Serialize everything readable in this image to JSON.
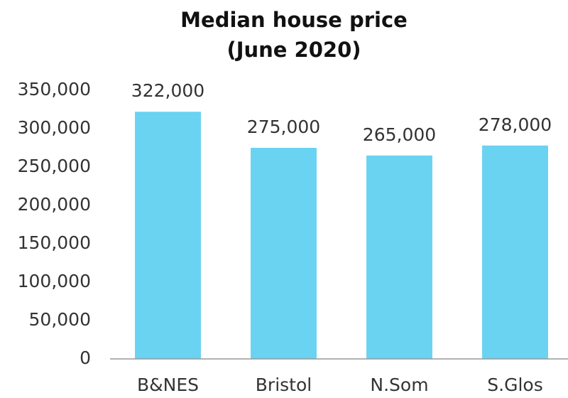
{
  "chart_data": {
    "type": "bar",
    "title": "Median house price",
    "subtitle": "(June 2020)",
    "categories": [
      "B&NES",
      "Bristol",
      "N.Som",
      "S.Glos"
    ],
    "values": [
      322000,
      275000,
      265000,
      278000
    ],
    "value_labels": [
      "322,000",
      "275,000",
      "265,000",
      "278,000"
    ],
    "color": "#69d3f1",
    "ylim": [
      0,
      350000
    ],
    "yticks": [
      0,
      {
        "value": 50000,
        "label": "50,000"
      },
      {
        "value": 100000,
        "label": "100,000"
      },
      {
        "value": 150000,
        "label": "150,000"
      },
      {
        "value": 200000,
        "label": "200,000"
      },
      {
        "value": 250000,
        "label": "250,000"
      },
      {
        "value": 300000,
        "label": "300,000"
      },
      {
        "value": 350000,
        "label": "350,000"
      }
    ],
    "grid": false
  }
}
